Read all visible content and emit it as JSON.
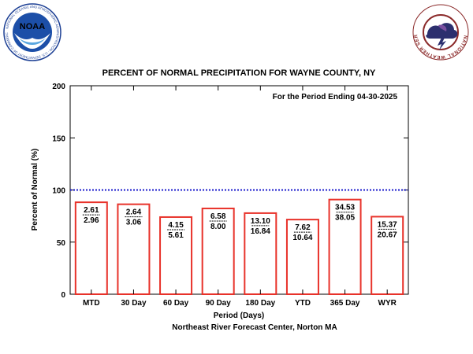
{
  "chart_data": {
    "type": "bar",
    "title": "PERCENT OF NORMAL PRECIPITATION FOR WAYNE COUNTY, NY",
    "subtitle": "For the Period Ending 04-30-2025",
    "xlabel": "Period (Days)",
    "ylabel": "Percent of Normal (%)",
    "footer": "Northeast River Forecast Center, Norton MA",
    "ylim": [
      0,
      200
    ],
    "yticks": [
      0,
      50,
      100,
      150,
      200
    ],
    "ytick_labels": [
      "0",
      "50",
      "100",
      "150",
      "200"
    ],
    "normal_line": 100,
    "normal_line_color": "#1a1acc",
    "bar_outline_color": "#e8322a",
    "grid": false,
    "categories": [
      "MTD",
      "30 Day",
      "60 Day",
      "90 Day",
      "180 Day",
      "YTD",
      "365 Day",
      "WYR"
    ],
    "values": [
      88.2,
      86.3,
      74.0,
      82.3,
      77.8,
      71.6,
      90.8,
      74.4
    ],
    "observed": [
      "2.61",
      "2.64",
      "4.15",
      "6.58",
      "13.10",
      "7.62",
      "34.53",
      "15.37"
    ],
    "normal": [
      "2.96",
      "3.06",
      "5.61",
      "8.00",
      "16.84",
      "10.64",
      "38.05",
      "20.67"
    ]
  },
  "logos": {
    "noaa": {
      "name": "noaa-logo",
      "wordmark": "NOAA",
      "ring_text": "NATIONAL OCEANIC AND ATMOSPHERIC ADMINISTRATION · U.S. DEPARTMENT OF COMMERCE"
    },
    "nws": {
      "name": "nws-logo",
      "ring_text": "NATIONAL WEATHER SERVICE"
    }
  }
}
